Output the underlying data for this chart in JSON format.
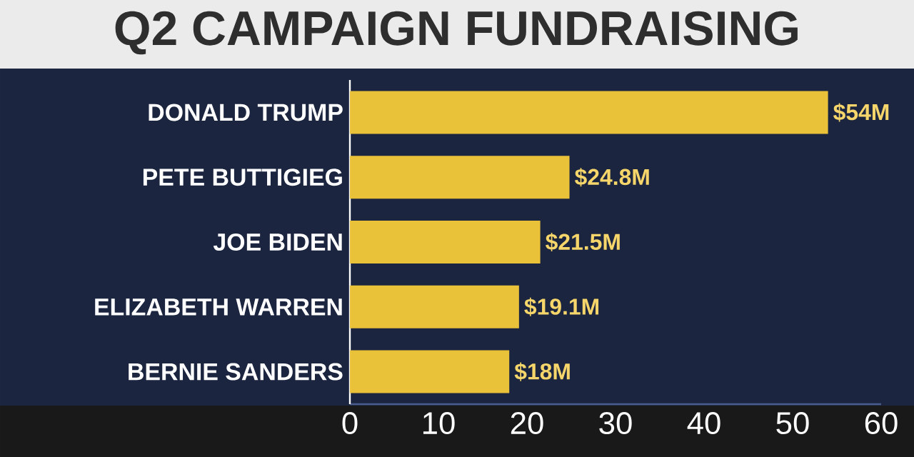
{
  "chart_data": {
    "type": "bar",
    "orientation": "horizontal",
    "title": "Q2 CAMPAIGN FUNDRAISING",
    "categories": [
      "DONALD TRUMP",
      "PETE BUTTIGIEG",
      "JOE BIDEN",
      "ELIZABETH WARREN",
      "BERNIE SANDERS"
    ],
    "values": [
      54,
      24.8,
      21.5,
      19.1,
      18
    ],
    "value_labels": [
      "$54M",
      "$24.8M",
      "$21.5M",
      "$19.1M",
      "$18M"
    ],
    "color": "#e9c23a",
    "xlim": [
      0,
      60
    ],
    "xticks": [
      0,
      10,
      20,
      30,
      40,
      50,
      60
    ]
  }
}
